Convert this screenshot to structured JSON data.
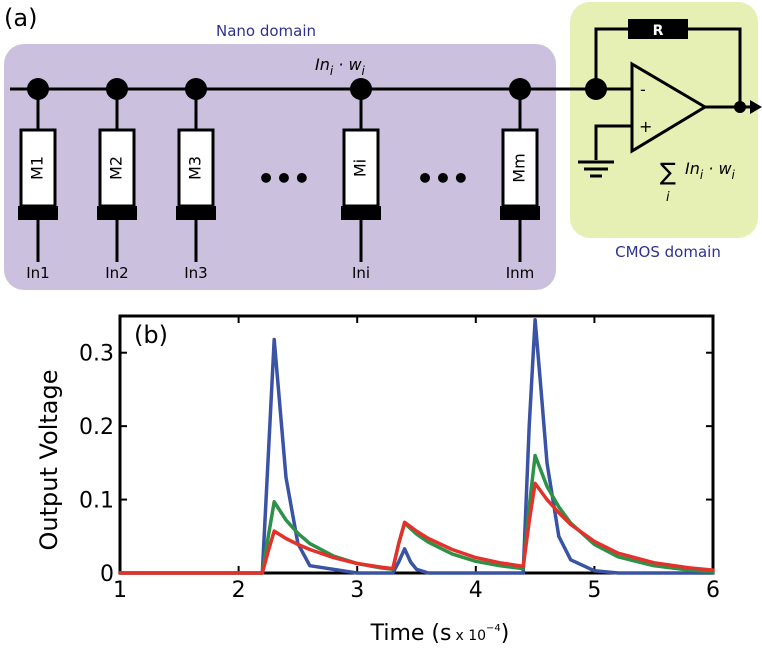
{
  "panel_a": {
    "label": "(a)",
    "nano_domain_label": "Nano domain",
    "cmos_domain_label": "CMOS domain",
    "bus_expr_base": "In",
    "bus_expr_sub": "i",
    "bus_expr_dot": " · w",
    "bus_expr_sub2": "i",
    "resistor_label": "R",
    "opamp_minus": "-",
    "opamp_plus": "+",
    "sum_symbol": "∑",
    "sum_index": "i",
    "sum_expr_base": "In",
    "sum_expr_sub": "i",
    "sum_expr_dot": " · w",
    "sum_expr_sub2": "i",
    "ellipsis": "•••",
    "memristors": [
      {
        "name": "M1",
        "input": "In1"
      },
      {
        "name": "M2",
        "input": "In2"
      },
      {
        "name": "M3",
        "input": "In3"
      },
      {
        "name": "Mi",
        "input": "Ini"
      },
      {
        "name": "Mm",
        "input": "Inm"
      }
    ],
    "colors": {
      "nano_fill": "#cbc1de",
      "cmos_fill": "#e6f0b4",
      "domain_text": "#2e3192",
      "wire": "#000000"
    }
  },
  "panel_b": {
    "label": "(b)"
  },
  "chart_data": {
    "type": "line",
    "title": "",
    "xlabel": "Time (s",
    "xlabel_scale": "x 10",
    "xlabel_exponent": "−4",
    "xlabel_close": ")",
    "ylabel": "Output Voltage",
    "xlim": [
      1,
      6
    ],
    "ylim": [
      0,
      0.35
    ],
    "xticks": [
      1,
      2,
      3,
      4,
      5,
      6
    ],
    "yticks": [
      0,
      0.1,
      0.2,
      0.3
    ],
    "ytick_labels": [
      "0",
      "0.1",
      "0.2",
      "0.3"
    ],
    "xtick_labels": [
      "1",
      "2",
      "3",
      "4",
      "5",
      "6"
    ],
    "grid": false,
    "series": [
      {
        "color": "#3a53a4",
        "x": [
          1,
          2.2,
          2.25,
          2.3,
          2.4,
          2.5,
          2.6,
          3.0,
          3.3,
          3.35,
          3.4,
          3.45,
          3.5,
          3.6,
          4.4,
          4.45,
          4.5,
          4.55,
          4.6,
          4.7,
          4.8,
          5.0,
          5.2,
          5.5,
          6.0
        ],
        "y": [
          0,
          0,
          0.16,
          0.318,
          0.13,
          0.04,
          0.01,
          0,
          0,
          0.015,
          0.033,
          0.015,
          0.005,
          0,
          0,
          0.2,
          0.345,
          0.25,
          0.15,
          0.05,
          0.018,
          0.003,
          0,
          0,
          0
        ]
      },
      {
        "color": "#2e9148",
        "x": [
          1,
          2.2,
          2.25,
          2.3,
          2.4,
          2.5,
          2.6,
          2.8,
          3.0,
          3.2,
          3.3,
          3.35,
          3.4,
          3.5,
          3.6,
          3.8,
          4.0,
          4.2,
          4.4,
          4.45,
          4.5,
          4.6,
          4.7,
          4.8,
          5.0,
          5.2,
          5.5,
          5.8,
          6.0
        ],
        "y": [
          0,
          0,
          0.05,
          0.097,
          0.072,
          0.054,
          0.04,
          0.023,
          0.013,
          0.007,
          0.005,
          0.04,
          0.068,
          0.053,
          0.042,
          0.026,
          0.016,
          0.01,
          0.006,
          0.09,
          0.16,
          0.118,
          0.09,
          0.068,
          0.039,
          0.022,
          0.01,
          0.004,
          0.002
        ]
      },
      {
        "color": "#e3322b",
        "x": [
          1,
          2.2,
          2.25,
          2.3,
          2.4,
          2.5,
          2.6,
          2.8,
          3.0,
          3.2,
          3.3,
          3.35,
          3.4,
          3.5,
          3.6,
          3.8,
          4.0,
          4.2,
          4.4,
          4.45,
          4.5,
          4.6,
          4.7,
          4.8,
          5.0,
          5.2,
          5.5,
          5.8,
          6.0
        ],
        "y": [
          0,
          0,
          0.03,
          0.057,
          0.047,
          0.039,
          0.032,
          0.021,
          0.013,
          0.008,
          0.006,
          0.04,
          0.069,
          0.057,
          0.047,
          0.032,
          0.021,
          0.014,
          0.009,
          0.07,
          0.122,
          0.1,
          0.082,
          0.066,
          0.043,
          0.027,
          0.014,
          0.007,
          0.004
        ]
      }
    ]
  }
}
